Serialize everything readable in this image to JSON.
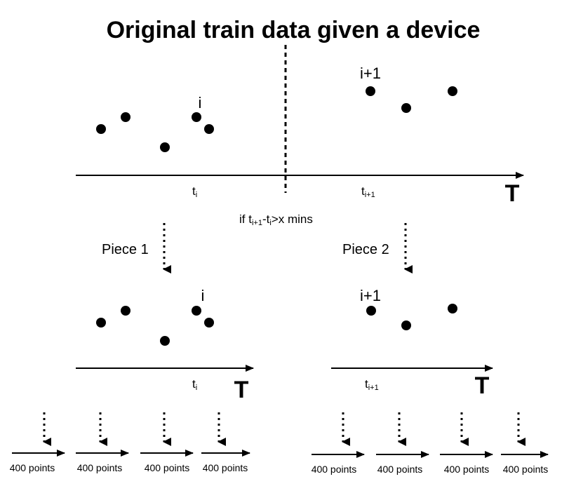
{
  "title": "Original train data given a device",
  "original": {
    "label_i": "i",
    "label_i1": "i+1",
    "tick_ti_base": "t",
    "tick_ti_sub": "i",
    "tick_ti1_base": "t",
    "tick_ti1_sub": "i+1",
    "axis_label": "T"
  },
  "condition": {
    "prefix": "if t",
    "sub1": "i+1",
    "mid": "-t",
    "sub2": "i",
    "suffix": ">x mins"
  },
  "piece1": {
    "label": "Piece 1",
    "label_i": "i",
    "tick_base": "t",
    "tick_sub": "i",
    "axis_label": "T"
  },
  "piece2": {
    "label": "Piece 2",
    "label_i1": "i+1",
    "tick_base": "t",
    "tick_sub": "i+1",
    "axis_label": "T"
  },
  "chunks": {
    "left": [
      "400 points",
      "400 points",
      "400 points",
      "400 points"
    ],
    "right": [
      "400 points",
      "400 points",
      "400 points",
      "400 points"
    ]
  }
}
